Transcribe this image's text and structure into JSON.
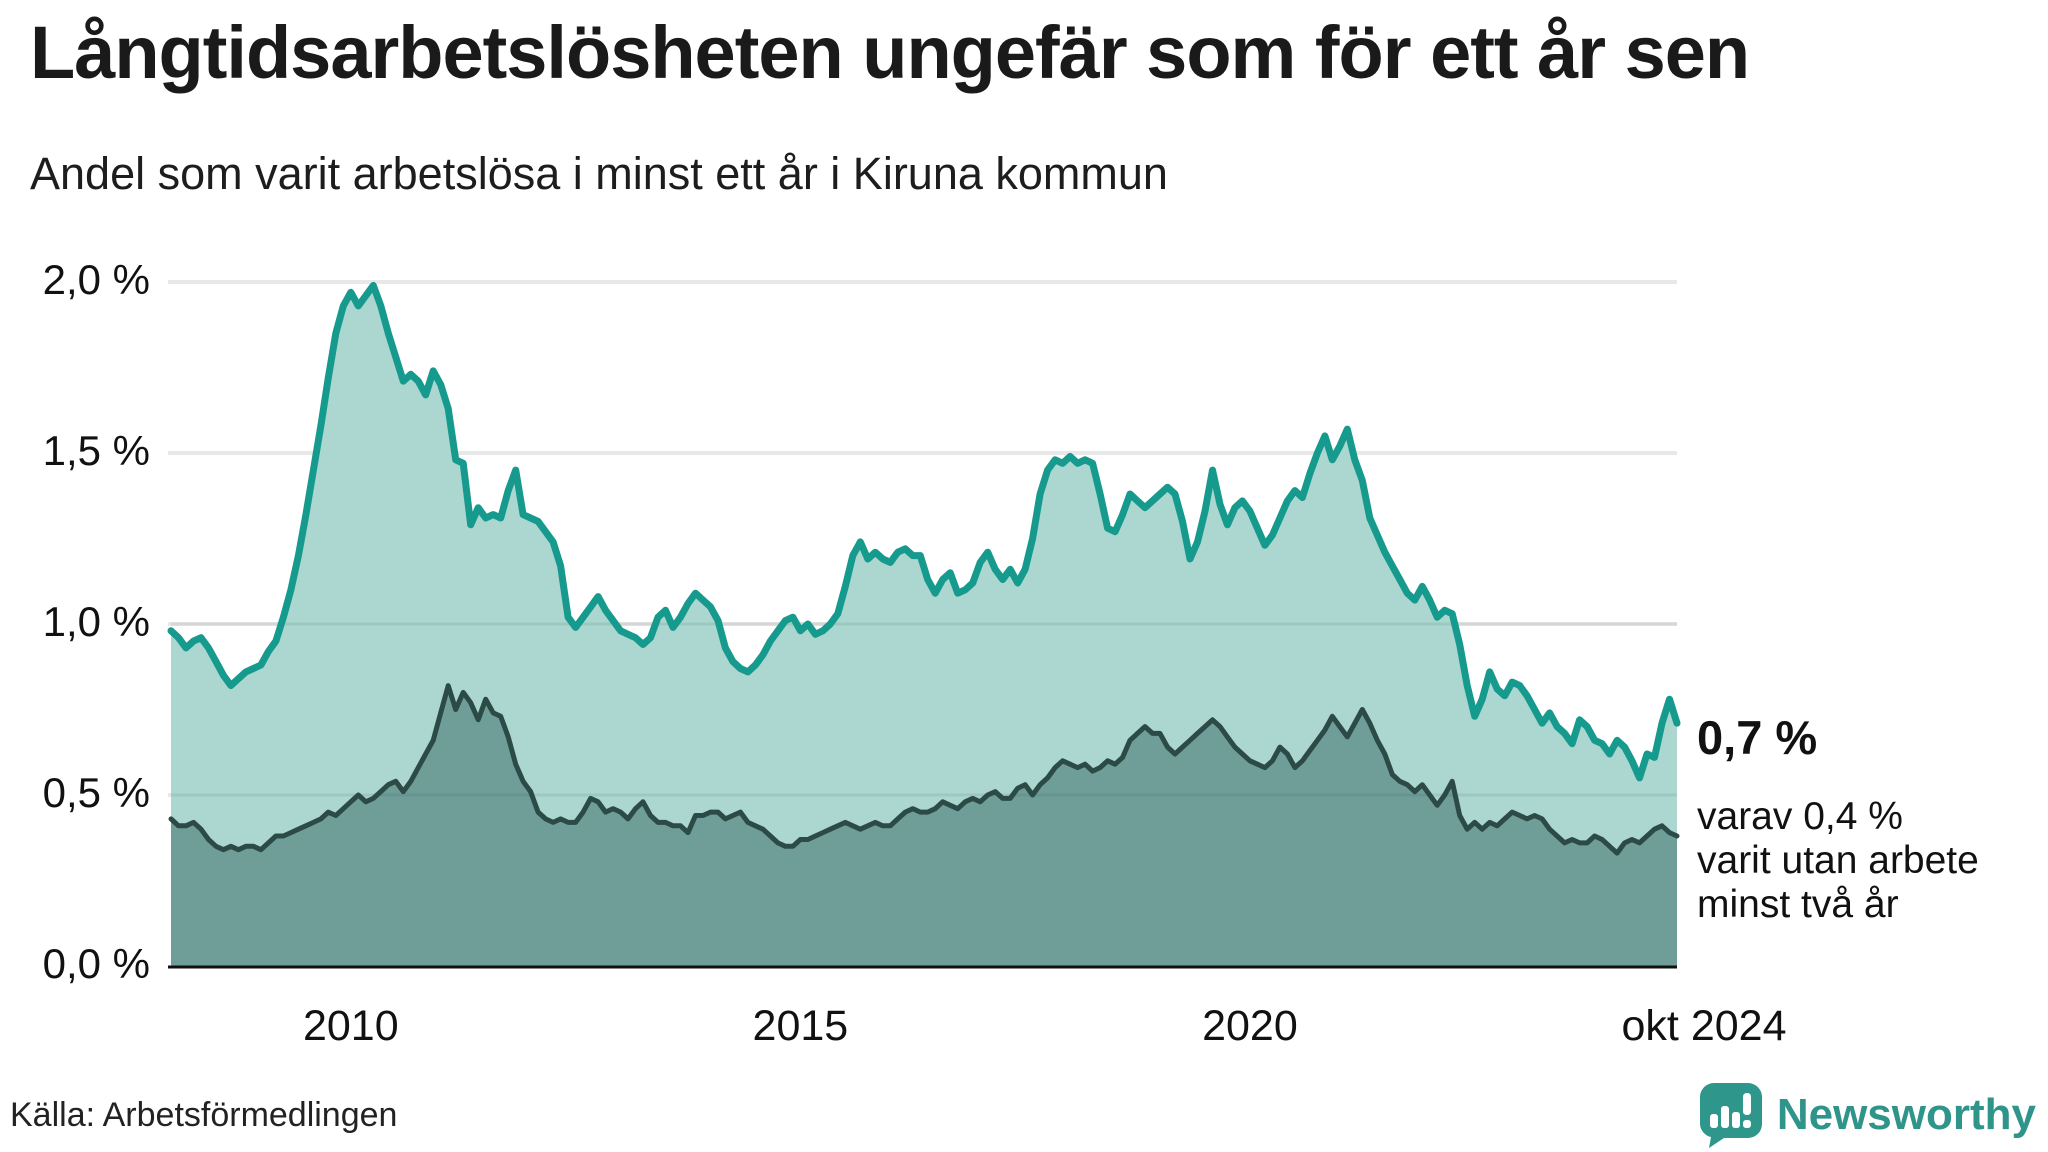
{
  "header": {
    "title": "Långtidsarbetslösheten ungefär som för ett år sen",
    "subtitle": "Andel som varit arbetslösa i minst ett år i Kiruna kommun"
  },
  "annotation": {
    "value": "0,7 %",
    "note": [
      "varav 0,4 %",
      "varit utan arbete",
      "minst två år"
    ]
  },
  "footer": {
    "source": "Källa: Arbetsförmedlingen",
    "brand": "Newsworthy"
  },
  "colors": {
    "line_primary": "#169a8d",
    "fill_primary": "#abd7d0",
    "line_secondary": "#2c4a46",
    "fill_secondary": "#6f9e99",
    "gridline": "#e8e8e8",
    "gridline_overlay": "rgba(35,65,60,0.10)",
    "axis": "#111111",
    "logo_teal": "#2f968b",
    "logo_text": "#2f948a"
  },
  "chart_data": {
    "type": "area",
    "title": "Långtidsarbetslösheten ungefär som för ett år sen",
    "subtitle": "Andel som varit arbetslösa i minst ett år i Kiruna kommun",
    "unit": "%",
    "frequency": "monthly",
    "x_start": "2008-01",
    "x_end": "2024-10",
    "ylim": [
      0,
      2.0
    ],
    "grid": true,
    "legend_position": "none",
    "y_ticks": [
      {
        "v": 2.0,
        "label": "2,0 %"
      },
      {
        "v": 1.5,
        "label": "1,5 %"
      },
      {
        "v": 1.0,
        "label": "1,0 %"
      },
      {
        "v": 0.5,
        "label": "0,5 %"
      },
      {
        "v": 0.0,
        "label": "0,0 %"
      }
    ],
    "x_ticks": [
      {
        "label": "2010",
        "index": 24
      },
      {
        "label": "2015",
        "index": 84
      },
      {
        "label": "2020",
        "index": 144
      },
      {
        "label": "okt 2024",
        "index": 201
      }
    ],
    "series": [
      {
        "name": "Andel som varit arbetslösa i minst ett år",
        "latest_label": "0,7 %",
        "values": [
          0.98,
          0.96,
          0.93,
          0.95,
          0.96,
          0.93,
          0.89,
          0.85,
          0.82,
          0.84,
          0.86,
          0.87,
          0.88,
          0.92,
          0.95,
          1.02,
          1.1,
          1.2,
          1.32,
          1.45,
          1.58,
          1.72,
          1.85,
          1.93,
          1.97,
          1.93,
          1.96,
          1.99,
          1.93,
          1.85,
          1.78,
          1.71,
          1.73,
          1.71,
          1.67,
          1.74,
          1.7,
          1.63,
          1.48,
          1.47,
          1.29,
          1.34,
          1.31,
          1.32,
          1.31,
          1.39,
          1.45,
          1.32,
          1.31,
          1.3,
          1.27,
          1.24,
          1.17,
          1.02,
          0.99,
          1.02,
          1.05,
          1.08,
          1.04,
          1.01,
          0.98,
          0.97,
          0.96,
          0.94,
          0.96,
          1.02,
          1.04,
          0.99,
          1.02,
          1.06,
          1.09,
          1.07,
          1.05,
          1.01,
          0.93,
          0.89,
          0.87,
          0.86,
          0.88,
          0.91,
          0.95,
          0.98,
          1.01,
          1.02,
          0.98,
          1.0,
          0.97,
          0.98,
          1.0,
          1.03,
          1.11,
          1.2,
          1.24,
          1.19,
          1.21,
          1.19,
          1.18,
          1.21,
          1.22,
          1.2,
          1.2,
          1.13,
          1.09,
          1.13,
          1.15,
          1.09,
          1.1,
          1.12,
          1.18,
          1.21,
          1.16,
          1.13,
          1.16,
          1.12,
          1.16,
          1.25,
          1.38,
          1.45,
          1.48,
          1.47,
          1.49,
          1.47,
          1.48,
          1.47,
          1.38,
          1.28,
          1.27,
          1.32,
          1.38,
          1.36,
          1.34,
          1.36,
          1.38,
          1.4,
          1.38,
          1.3,
          1.19,
          1.24,
          1.33,
          1.45,
          1.35,
          1.29,
          1.34,
          1.36,
          1.33,
          1.28,
          1.23,
          1.26,
          1.31,
          1.36,
          1.39,
          1.37,
          1.44,
          1.5,
          1.55,
          1.48,
          1.52,
          1.57,
          1.48,
          1.42,
          1.31,
          1.26,
          1.21,
          1.17,
          1.13,
          1.09,
          1.07,
          1.11,
          1.07,
          1.02,
          1.04,
          1.03,
          0.94,
          0.82,
          0.73,
          0.78,
          0.86,
          0.81,
          0.79,
          0.83,
          0.82,
          0.79,
          0.75,
          0.71,
          0.74,
          0.7,
          0.68,
          0.65,
          0.72,
          0.7,
          0.66,
          0.65,
          0.62,
          0.66,
          0.64,
          0.6,
          0.55,
          0.62,
          0.61,
          0.71,
          0.78,
          0.71
        ]
      },
      {
        "name": "varav varit utan arbete minst två år",
        "latest_label": "0,4 %",
        "values": [
          0.43,
          0.41,
          0.41,
          0.42,
          0.4,
          0.37,
          0.35,
          0.34,
          0.35,
          0.34,
          0.35,
          0.35,
          0.34,
          0.36,
          0.38,
          0.38,
          0.39,
          0.4,
          0.41,
          0.42,
          0.43,
          0.45,
          0.44,
          0.46,
          0.48,
          0.5,
          0.48,
          0.49,
          0.51,
          0.53,
          0.54,
          0.51,
          0.54,
          0.58,
          0.62,
          0.66,
          0.74,
          0.82,
          0.75,
          0.8,
          0.77,
          0.72,
          0.78,
          0.74,
          0.73,
          0.67,
          0.59,
          0.54,
          0.51,
          0.45,
          0.43,
          0.42,
          0.43,
          0.42,
          0.42,
          0.45,
          0.49,
          0.48,
          0.45,
          0.46,
          0.45,
          0.43,
          0.46,
          0.48,
          0.44,
          0.42,
          0.42,
          0.41,
          0.41,
          0.39,
          0.44,
          0.44,
          0.45,
          0.45,
          0.43,
          0.44,
          0.45,
          0.42,
          0.41,
          0.4,
          0.38,
          0.36,
          0.35,
          0.35,
          0.37,
          0.37,
          0.38,
          0.39,
          0.4,
          0.41,
          0.42,
          0.41,
          0.4,
          0.41,
          0.42,
          0.41,
          0.41,
          0.43,
          0.45,
          0.46,
          0.45,
          0.45,
          0.46,
          0.48,
          0.47,
          0.46,
          0.48,
          0.49,
          0.48,
          0.5,
          0.51,
          0.49,
          0.49,
          0.52,
          0.53,
          0.5,
          0.53,
          0.55,
          0.58,
          0.6,
          0.59,
          0.58,
          0.59,
          0.57,
          0.58,
          0.6,
          0.59,
          0.61,
          0.66,
          0.68,
          0.7,
          0.68,
          0.68,
          0.64,
          0.62,
          0.64,
          0.66,
          0.68,
          0.7,
          0.72,
          0.7,
          0.67,
          0.64,
          0.62,
          0.6,
          0.59,
          0.58,
          0.6,
          0.64,
          0.62,
          0.58,
          0.6,
          0.63,
          0.66,
          0.69,
          0.73,
          0.7,
          0.67,
          0.71,
          0.75,
          0.71,
          0.66,
          0.62,
          0.56,
          0.54,
          0.53,
          0.51,
          0.53,
          0.5,
          0.47,
          0.5,
          0.54,
          0.44,
          0.4,
          0.42,
          0.4,
          0.42,
          0.41,
          0.43,
          0.45,
          0.44,
          0.43,
          0.44,
          0.43,
          0.4,
          0.38,
          0.36,
          0.37,
          0.36,
          0.36,
          0.38,
          0.37,
          0.35,
          0.33,
          0.36,
          0.37,
          0.36,
          0.38,
          0.4,
          0.41,
          0.39,
          0.38
        ]
      }
    ]
  }
}
